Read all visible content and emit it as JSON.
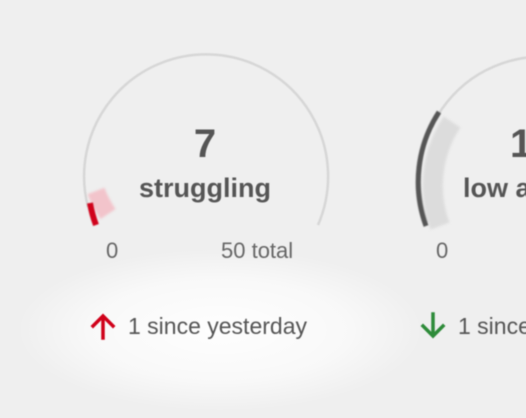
{
  "cards": [
    {
      "value": "7",
      "label": "struggling",
      "min_label": "0",
      "max_label": "50 total",
      "change_text": "1 since yesterday",
      "change_direction": "up",
      "progress_fraction": 0.14,
      "accent_color": "#d0021b",
      "change_icon": "arrow-up-icon"
    },
    {
      "value": "1",
      "label": "low a",
      "min_label": "0",
      "change_text": "1 since",
      "change_direction": "down",
      "accent_color": "#555555",
      "change_icon": "arrow-down-icon",
      "change_color": "#2e8b3a"
    }
  ]
}
